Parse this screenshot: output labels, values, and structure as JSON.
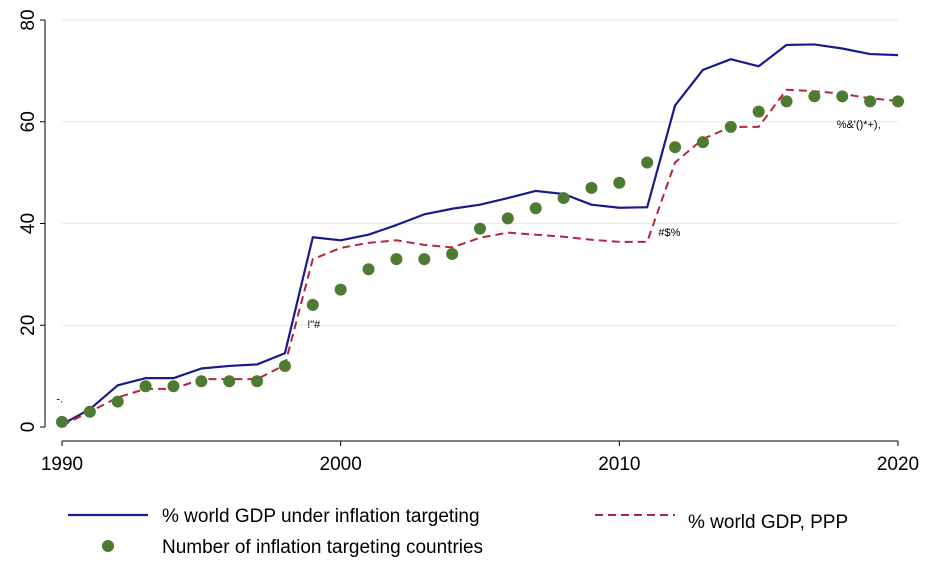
{
  "chart_data": {
    "type": "line",
    "title": "",
    "xlabel": "",
    "ylabel": "",
    "xlim": [
      1990,
      2020
    ],
    "ylim": [
      0,
      80
    ],
    "x_ticks": [
      1990,
      2000,
      2010,
      2020
    ],
    "y_ticks": [
      0,
      20,
      40,
      60,
      80
    ],
    "grid": true,
    "legend_position": "bottom",
    "series": [
      {
        "name": "% world GDP under inflation targeting",
        "style": "solid-line",
        "color": "#1a1a8c",
        "x": [
          1990,
          1991,
          1992,
          1993,
          1994,
          1995,
          1996,
          1997,
          1998,
          1999,
          2000,
          2001,
          2002,
          2003,
          2004,
          2005,
          2006,
          2007,
          2008,
          2009,
          2010,
          2011,
          2012,
          2013,
          2014,
          2015,
          2016,
          2017,
          2018,
          2019,
          2020
        ],
        "values": [
          0.5,
          3.5,
          8.2,
          9.6,
          9.6,
          11.5,
          12,
          12.3,
          14.5,
          37.3,
          36.7,
          37.8,
          39.7,
          41.8,
          42.9,
          43.7,
          45,
          46.4,
          45.8,
          43.7,
          43.1,
          43.2,
          63.2,
          70.2,
          72.3,
          70.9,
          75.1,
          75.2,
          74.4,
          73.3,
          73.1
        ]
      },
      {
        "name": "% world GDP, PPP",
        "style": "dashed-line",
        "color": "#b5253f",
        "x": [
          1990,
          1991,
          1992,
          1993,
          1994,
          1995,
          1996,
          1997,
          1998,
          1999,
          2000,
          2001,
          2002,
          2003,
          2004,
          2005,
          2006,
          2007,
          2008,
          2009,
          2010,
          2011,
          2012,
          2013,
          2014,
          2015,
          2016,
          2017,
          2018,
          2019,
          2020
        ],
        "values": [
          0.3,
          3,
          5.8,
          7.5,
          7.5,
          9.4,
          9.4,
          9.4,
          12.2,
          33,
          35.2,
          36.2,
          36.7,
          35.8,
          35.3,
          37.2,
          38.2,
          37.8,
          37.4,
          36.8,
          36.4,
          36.4,
          52,
          56.6,
          59,
          59,
          66.3,
          66,
          65.5,
          64.6,
          64.1
        ]
      },
      {
        "name": "Number of inflation targeting countries",
        "style": "dots",
        "color": "#4e7a31",
        "x": [
          1990,
          1991,
          1992,
          1993,
          1994,
          1995,
          1996,
          1997,
          1998,
          1999,
          2000,
          2001,
          2002,
          2003,
          2004,
          2005,
          2006,
          2007,
          2008,
          2009,
          2010,
          2011,
          2012,
          2013,
          2014,
          2015,
          2016,
          2017,
          2018,
          2019,
          2020
        ],
        "values": [
          1,
          3,
          5,
          8,
          8,
          9,
          9,
          9,
          12,
          24,
          27,
          31,
          33,
          33,
          34,
          39,
          41,
          43,
          45,
          47,
          48,
          52,
          55,
          56,
          59,
          62,
          64,
          65,
          65,
          64,
          64
        ]
      }
    ],
    "annotations": [
      {
        "text": "-.",
        "x": 1989.8,
        "y": 4.8
      },
      {
        "text": "!\"#",
        "x": 1998.8,
        "y": 19.5
      },
      {
        "text": "#$%",
        "x": 2011.4,
        "y": 37.5
      },
      {
        "text": "%&'()*+),",
        "x": 2017.8,
        "y": 58.8
      }
    ]
  }
}
